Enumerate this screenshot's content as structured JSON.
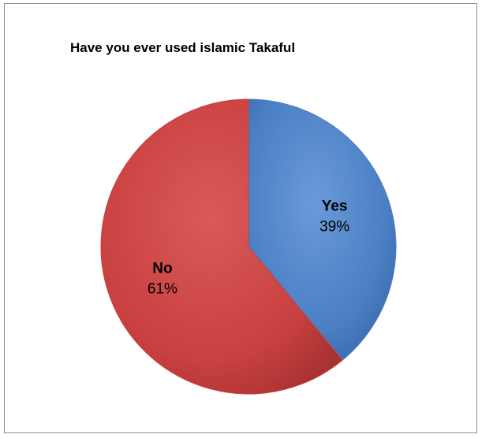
{
  "chart_data": {
    "type": "pie",
    "title": "Have  you ever used islamic Takaful",
    "slices": [
      {
        "label": "Yes",
        "value": 39,
        "percent_label": "39%",
        "color": "#4a7fc4"
      },
      {
        "label": "No",
        "value": 61,
        "percent_label": "61%",
        "color": "#c94040"
      }
    ],
    "start_angle": "12 o'clock",
    "direction": "clockwise",
    "legend": "none",
    "data_labels": "inside"
  }
}
